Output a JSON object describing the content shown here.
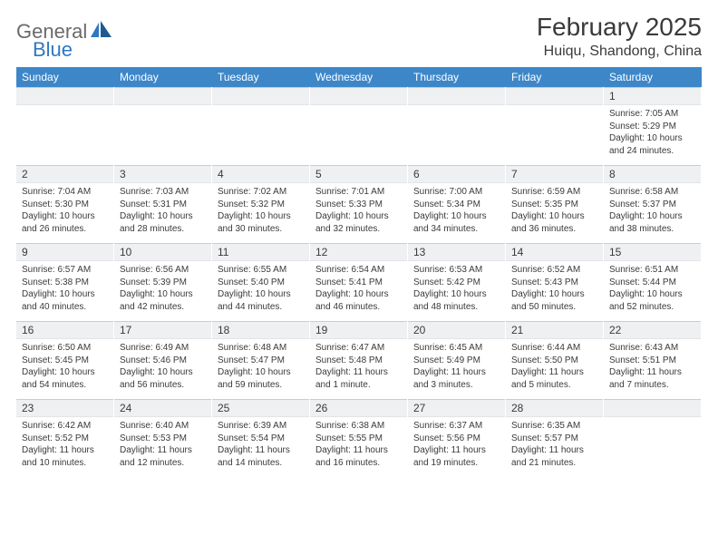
{
  "logo": {
    "text1": "General",
    "text2": "Blue"
  },
  "title": "February 2025",
  "location": "Huiqu, Shandong, China",
  "colors": {
    "header_bg": "#3d87c9",
    "header_text": "#ffffff",
    "daynum_bg": "#eef0f2",
    "daynum_border": "#c9cdd1",
    "body_text": "#3a3a3a",
    "logo_gray": "#6a6a6a",
    "logo_blue": "#2f78c1"
  },
  "weekdays": [
    "Sunday",
    "Monday",
    "Tuesday",
    "Wednesday",
    "Thursday",
    "Friday",
    "Saturday"
  ],
  "weeks": [
    [
      {
        "n": "",
        "sr": "",
        "ss": "",
        "dl": ""
      },
      {
        "n": "",
        "sr": "",
        "ss": "",
        "dl": ""
      },
      {
        "n": "",
        "sr": "",
        "ss": "",
        "dl": ""
      },
      {
        "n": "",
        "sr": "",
        "ss": "",
        "dl": ""
      },
      {
        "n": "",
        "sr": "",
        "ss": "",
        "dl": ""
      },
      {
        "n": "",
        "sr": "",
        "ss": "",
        "dl": ""
      },
      {
        "n": "1",
        "sr": "Sunrise: 7:05 AM",
        "ss": "Sunset: 5:29 PM",
        "dl": "Daylight: 10 hours and 24 minutes."
      }
    ],
    [
      {
        "n": "2",
        "sr": "Sunrise: 7:04 AM",
        "ss": "Sunset: 5:30 PM",
        "dl": "Daylight: 10 hours and 26 minutes."
      },
      {
        "n": "3",
        "sr": "Sunrise: 7:03 AM",
        "ss": "Sunset: 5:31 PM",
        "dl": "Daylight: 10 hours and 28 minutes."
      },
      {
        "n": "4",
        "sr": "Sunrise: 7:02 AM",
        "ss": "Sunset: 5:32 PM",
        "dl": "Daylight: 10 hours and 30 minutes."
      },
      {
        "n": "5",
        "sr": "Sunrise: 7:01 AM",
        "ss": "Sunset: 5:33 PM",
        "dl": "Daylight: 10 hours and 32 minutes."
      },
      {
        "n": "6",
        "sr": "Sunrise: 7:00 AM",
        "ss": "Sunset: 5:34 PM",
        "dl": "Daylight: 10 hours and 34 minutes."
      },
      {
        "n": "7",
        "sr": "Sunrise: 6:59 AM",
        "ss": "Sunset: 5:35 PM",
        "dl": "Daylight: 10 hours and 36 minutes."
      },
      {
        "n": "8",
        "sr": "Sunrise: 6:58 AM",
        "ss": "Sunset: 5:37 PM",
        "dl": "Daylight: 10 hours and 38 minutes."
      }
    ],
    [
      {
        "n": "9",
        "sr": "Sunrise: 6:57 AM",
        "ss": "Sunset: 5:38 PM",
        "dl": "Daylight: 10 hours and 40 minutes."
      },
      {
        "n": "10",
        "sr": "Sunrise: 6:56 AM",
        "ss": "Sunset: 5:39 PM",
        "dl": "Daylight: 10 hours and 42 minutes."
      },
      {
        "n": "11",
        "sr": "Sunrise: 6:55 AM",
        "ss": "Sunset: 5:40 PM",
        "dl": "Daylight: 10 hours and 44 minutes."
      },
      {
        "n": "12",
        "sr": "Sunrise: 6:54 AM",
        "ss": "Sunset: 5:41 PM",
        "dl": "Daylight: 10 hours and 46 minutes."
      },
      {
        "n": "13",
        "sr": "Sunrise: 6:53 AM",
        "ss": "Sunset: 5:42 PM",
        "dl": "Daylight: 10 hours and 48 minutes."
      },
      {
        "n": "14",
        "sr": "Sunrise: 6:52 AM",
        "ss": "Sunset: 5:43 PM",
        "dl": "Daylight: 10 hours and 50 minutes."
      },
      {
        "n": "15",
        "sr": "Sunrise: 6:51 AM",
        "ss": "Sunset: 5:44 PM",
        "dl": "Daylight: 10 hours and 52 minutes."
      }
    ],
    [
      {
        "n": "16",
        "sr": "Sunrise: 6:50 AM",
        "ss": "Sunset: 5:45 PM",
        "dl": "Daylight: 10 hours and 54 minutes."
      },
      {
        "n": "17",
        "sr": "Sunrise: 6:49 AM",
        "ss": "Sunset: 5:46 PM",
        "dl": "Daylight: 10 hours and 56 minutes."
      },
      {
        "n": "18",
        "sr": "Sunrise: 6:48 AM",
        "ss": "Sunset: 5:47 PM",
        "dl": "Daylight: 10 hours and 59 minutes."
      },
      {
        "n": "19",
        "sr": "Sunrise: 6:47 AM",
        "ss": "Sunset: 5:48 PM",
        "dl": "Daylight: 11 hours and 1 minute."
      },
      {
        "n": "20",
        "sr": "Sunrise: 6:45 AM",
        "ss": "Sunset: 5:49 PM",
        "dl": "Daylight: 11 hours and 3 minutes."
      },
      {
        "n": "21",
        "sr": "Sunrise: 6:44 AM",
        "ss": "Sunset: 5:50 PM",
        "dl": "Daylight: 11 hours and 5 minutes."
      },
      {
        "n": "22",
        "sr": "Sunrise: 6:43 AM",
        "ss": "Sunset: 5:51 PM",
        "dl": "Daylight: 11 hours and 7 minutes."
      }
    ],
    [
      {
        "n": "23",
        "sr": "Sunrise: 6:42 AM",
        "ss": "Sunset: 5:52 PM",
        "dl": "Daylight: 11 hours and 10 minutes."
      },
      {
        "n": "24",
        "sr": "Sunrise: 6:40 AM",
        "ss": "Sunset: 5:53 PM",
        "dl": "Daylight: 11 hours and 12 minutes."
      },
      {
        "n": "25",
        "sr": "Sunrise: 6:39 AM",
        "ss": "Sunset: 5:54 PM",
        "dl": "Daylight: 11 hours and 14 minutes."
      },
      {
        "n": "26",
        "sr": "Sunrise: 6:38 AM",
        "ss": "Sunset: 5:55 PM",
        "dl": "Daylight: 11 hours and 16 minutes."
      },
      {
        "n": "27",
        "sr": "Sunrise: 6:37 AM",
        "ss": "Sunset: 5:56 PM",
        "dl": "Daylight: 11 hours and 19 minutes."
      },
      {
        "n": "28",
        "sr": "Sunrise: 6:35 AM",
        "ss": "Sunset: 5:57 PM",
        "dl": "Daylight: 11 hours and 21 minutes."
      },
      {
        "n": "",
        "sr": "",
        "ss": "",
        "dl": ""
      }
    ]
  ]
}
